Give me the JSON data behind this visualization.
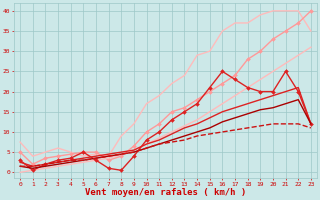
{
  "x": [
    0,
    1,
    2,
    3,
    4,
    5,
    6,
    7,
    8,
    9,
    10,
    11,
    12,
    13,
    14,
    15,
    16,
    17,
    18,
    19,
    20,
    21,
    22,
    23
  ],
  "background_color": "#cce8e8",
  "grid_color": "#9ec8c8",
  "xlabel": "Vent moyen/en rafales ( km/h )",
  "xlabel_color": "#cc0000",
  "lines": [
    {
      "name": "line1_lightest_smooth",
      "color": "#ffbbbb",
      "lw": 1.0,
      "marker": null,
      "y": [
        7.5,
        4,
        5,
        6,
        5,
        4,
        4.5,
        4,
        9,
        12,
        17,
        19,
        22,
        24,
        29,
        30,
        35,
        37,
        37,
        39,
        40,
        40,
        40,
        35
      ]
    },
    {
      "name": "line2_light_marker",
      "color": "#ff9999",
      "lw": 1.0,
      "marker": "D",
      "markersize": 2.0,
      "y": [
        5,
        2,
        3.5,
        4,
        4.5,
        5,
        5,
        3,
        4,
        6.5,
        10,
        12,
        15,
        16,
        18,
        20,
        22,
        24,
        28,
        30,
        33,
        35,
        37,
        40
      ]
    },
    {
      "name": "line3_light_straight",
      "color": "#ffbbbb",
      "lw": 1.0,
      "marker": null,
      "y": [
        0,
        0.5,
        1,
        1.5,
        2,
        2.5,
        3,
        3.5,
        4.5,
        5.5,
        7,
        8.5,
        10,
        11.5,
        13,
        15,
        17,
        19,
        21,
        23,
        25,
        27,
        29,
        31
      ]
    },
    {
      "name": "line4_red_marker",
      "color": "#dd2222",
      "lw": 1.0,
      "marker": "D",
      "markersize": 2.0,
      "y": [
        3,
        0.5,
        2,
        3,
        3.5,
        5,
        3,
        1,
        0.5,
        4,
        8,
        10,
        13,
        15,
        17,
        21,
        25,
        23,
        21,
        20,
        20,
        25,
        20,
        12
      ]
    },
    {
      "name": "line5_red_smooth",
      "color": "#dd2222",
      "lw": 1.0,
      "marker": null,
      "y": [
        2.5,
        1.5,
        2,
        2.5,
        3,
        3.5,
        4,
        4.5,
        5,
        5.5,
        7,
        8,
        9.5,
        11,
        12,
        13.5,
        15,
        16,
        17,
        18,
        19,
        20,
        21,
        12
      ]
    },
    {
      "name": "line6_dark_straight",
      "color": "#aa0000",
      "lw": 1.0,
      "marker": null,
      "y": [
        1.5,
        1,
        1.5,
        2,
        2.5,
        3,
        3.5,
        4,
        4.5,
        5,
        6,
        7,
        8,
        9,
        10,
        11,
        12.5,
        13.5,
        14.5,
        15.5,
        16,
        17,
        18,
        12
      ]
    },
    {
      "name": "line7_dashed",
      "color": "#cc1111",
      "lw": 1.0,
      "marker": null,
      "linestyle": "--",
      "y": [
        1.5,
        1.5,
        2,
        2.5,
        3,
        3,
        3.5,
        4,
        4.5,
        5,
        6,
        7,
        7.5,
        8,
        9,
        9.5,
        10,
        10.5,
        11,
        11.5,
        12,
        12,
        12,
        11
      ]
    }
  ],
  "ylim": [
    -1.5,
    42
  ],
  "yticks": [
    0,
    5,
    10,
    15,
    20,
    25,
    30,
    35,
    40
  ],
  "xticks": [
    0,
    1,
    2,
    3,
    4,
    5,
    6,
    7,
    8,
    9,
    10,
    11,
    12,
    13,
    14,
    15,
    16,
    17,
    18,
    19,
    20,
    21,
    22,
    23
  ],
  "tick_color": "#cc0000",
  "tick_fontsize": 4.5,
  "xlabel_fontsize": 6.5
}
